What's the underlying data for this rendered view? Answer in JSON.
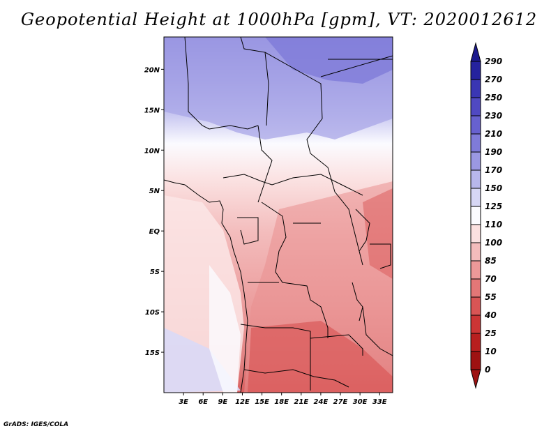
{
  "title": "Geopotential Height at 1000hPa [gpm], VT: 2020012612",
  "footer": "GrADS: IGES/COLA",
  "map": {
    "lat_labels": [
      "20N",
      "15N",
      "10N",
      "5N",
      "EQ",
      "5S",
      "10S",
      "15S"
    ],
    "lon_labels": [
      "3E",
      "6E",
      "9E",
      "12E",
      "15E",
      "18E",
      "21E",
      "24E",
      "27E",
      "30E",
      "33E"
    ],
    "lat_range": [
      -20,
      24
    ],
    "lon_range": [
      0,
      35
    ]
  },
  "colorbar": {
    "levels": [
      "290",
      "270",
      "250",
      "230",
      "210",
      "190",
      "170",
      "150",
      "125",
      "110",
      "100",
      "85",
      "70",
      "55",
      "40",
      "25",
      "10",
      "0"
    ],
    "colors": [
      "#1c1a8e",
      "#25229e",
      "#3a36b3",
      "#5049c2",
      "#6761cf",
      "#7f7bd9",
      "#9b98e2",
      "#b8b7ec",
      "#d6d6f5",
      "#fbfbff",
      "#fbe0e0",
      "#f4bcbc",
      "#ec9999",
      "#e37777",
      "#d95555",
      "#cc3535",
      "#b81f1f",
      "#9e1212"
    ]
  }
}
